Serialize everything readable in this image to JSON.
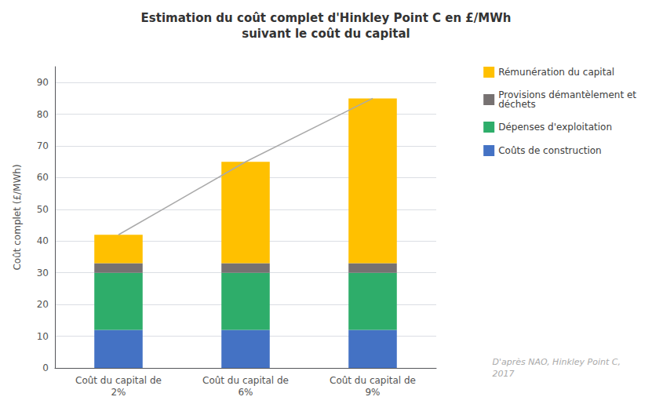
{
  "chart_data": {
    "type": "bar",
    "title": "Estimation du coût complet d'Hinkley Point C en £/MWh\nsuivant le coût du capital",
    "y_label": "Coût complet (£/MWh)",
    "categories": [
      "Coût du capital de\n2%",
      "Coût du capital de\n6%",
      "Coût du capital de\n9%"
    ],
    "stacked": true,
    "series": [
      {
        "name": "Coûts de construction",
        "color": "#4472C4",
        "values": [
          12,
          12,
          12
        ]
      },
      {
        "name": "Dépenses d'exploitation",
        "color": "#2EAD6A",
        "values": [
          18,
          18,
          18
        ]
      },
      {
        "name": "Provisions démantèlement et\ndéchets",
        "color": "#767171",
        "values": [
          3,
          3,
          3
        ]
      },
      {
        "name": "Rémunération du capital",
        "color": "#FFC000",
        "values": [
          9,
          32,
          52
        ]
      },
      {
        "type": "line",
        "color": "#AAAAAA",
        "values": [
          42,
          65,
          85
        ]
      }
    ],
    "legend_order": [
      "Rémunération du capital",
      "Provisions démantèlement et\ndéchets",
      "Dépenses d'exploitation",
      "Coûts de construction"
    ],
    "ylim": [
      0,
      95
    ],
    "yticks": [
      0,
      10,
      20,
      30,
      40,
      50,
      60,
      70,
      80,
      90
    ],
    "grid": true,
    "legend": "right",
    "annotation": "D'après NAO, Hinkley Point C,\n2017"
  }
}
